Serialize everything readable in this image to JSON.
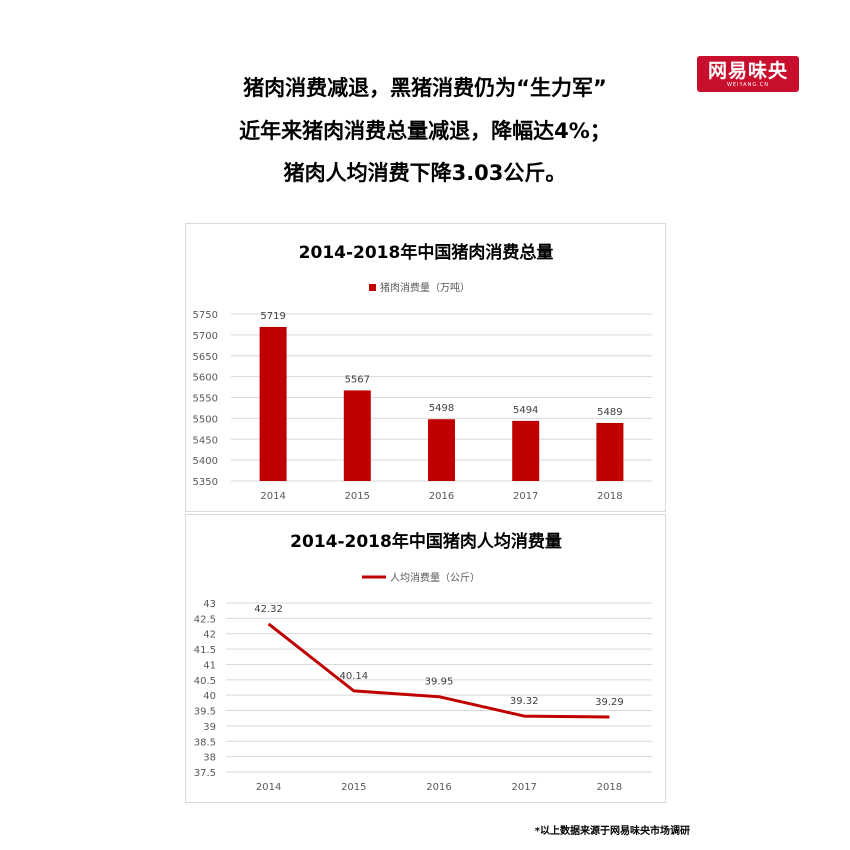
{
  "logo": {
    "name": "网易味央",
    "sub": "WEIYANG.CN"
  },
  "headline": {
    "line1": "猪肉消费减退，黑猪消费仍为“生力军”",
    "line2": "近年来猪肉消费总量减退，降幅达4%；",
    "line3": "猪肉人均消费下降3.03公斤。"
  },
  "colors": {
    "brand": "#c8102e",
    "series": "#c00000",
    "grid": "#d9d9d9"
  },
  "chart_data": [
    {
      "type": "bar",
      "title": "2014-2018年中国猪肉消费总量",
      "categories": [
        "2014",
        "2015",
        "2016",
        "2017",
        "2018"
      ],
      "series": [
        {
          "name": "猪肉消费量（万吨）",
          "values": [
            5719,
            5567,
            5498,
            5494,
            5489
          ]
        }
      ],
      "data_labels": [
        "5719",
        "5567",
        "5498",
        "5494",
        "5489"
      ],
      "ylim": [
        5350,
        5750
      ],
      "yticks": [
        5350,
        5400,
        5450,
        5500,
        5550,
        5600,
        5650,
        5700,
        5750
      ],
      "ytick_labels": [
        "5350",
        "5400",
        "5450",
        "5500",
        "5550",
        "5600",
        "5650",
        "5700",
        "5750"
      ],
      "grid": true,
      "legend": "top"
    },
    {
      "type": "line",
      "title": "2014-2018年中国猪肉人均消费量",
      "categories": [
        "2014",
        "2015",
        "2016",
        "2017",
        "2018"
      ],
      "series": [
        {
          "name": "人均消费量（公斤）",
          "values": [
            42.32,
            40.14,
            39.95,
            39.32,
            39.29
          ]
        }
      ],
      "data_labels": [
        "42.32",
        "40.14",
        "39.95",
        "39.32",
        "39.29"
      ],
      "ylim": [
        37.5,
        43
      ],
      "yticks": [
        37.5,
        38,
        38.5,
        39,
        39.5,
        40,
        40.5,
        41,
        41.5,
        42,
        42.5,
        43
      ],
      "ytick_labels": [
        "37.5",
        "38",
        "38.5",
        "39",
        "39.5",
        "40",
        "40.5",
        "41",
        "41.5",
        "42",
        "42.5",
        "43"
      ],
      "grid": true,
      "legend": "top"
    }
  ],
  "footnote": "*以上数据来源于网易味央市场调研"
}
